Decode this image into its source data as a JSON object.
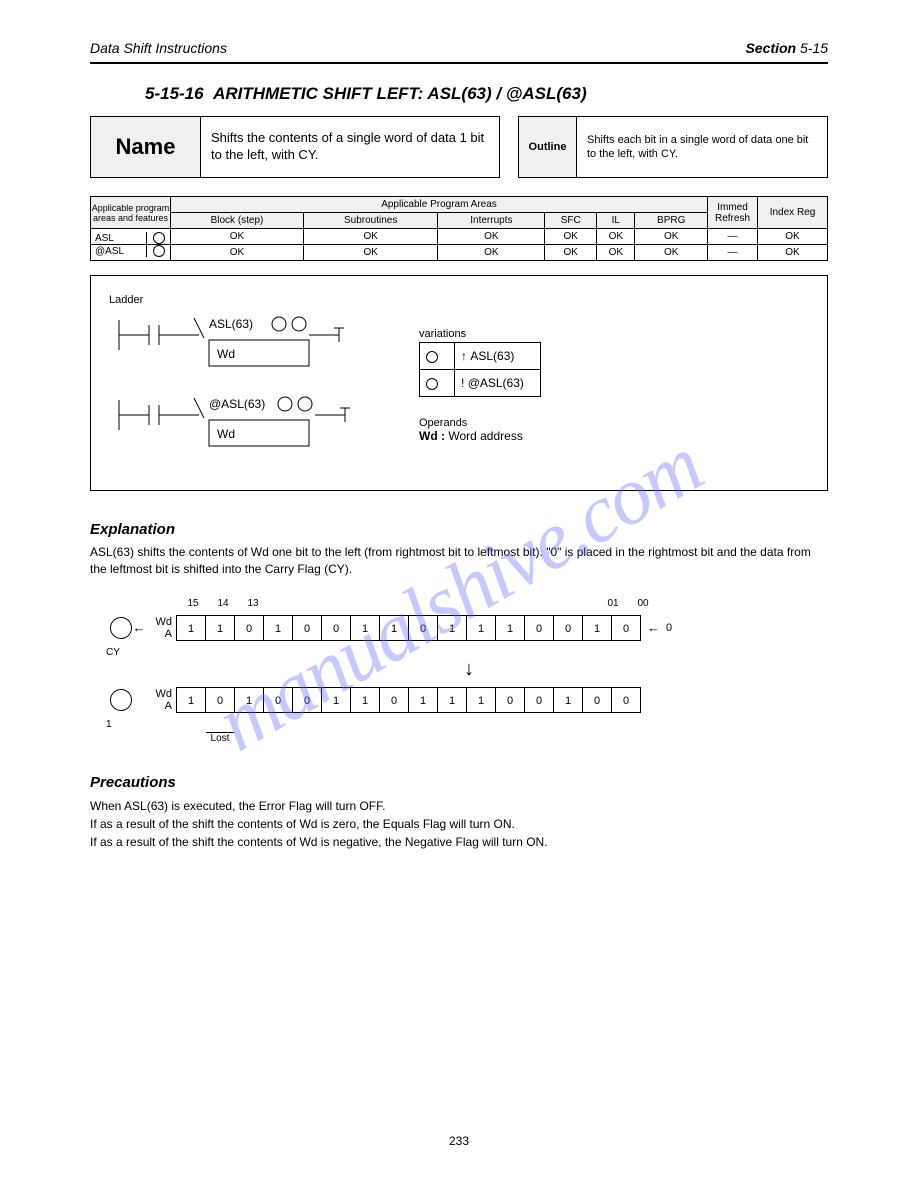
{
  "header": {
    "left": "Data Shift Instructions",
    "chapter": "Section",
    "sec": "5-15"
  },
  "section": {
    "number": "5-15-16",
    "title": "ARITHMETIC SHIFT LEFT: ASL(63) / @ASL(63)"
  },
  "name_box": {
    "label": "Name",
    "desc": "Shifts the contents of a single word of data 1 bit to the left, with CY."
  },
  "outline_box": {
    "label": "Outline",
    "desc": "Shifts each bit in a single word of data one bit to the left, with CY."
  },
  "applic": {
    "group": "Applicable program areas and features",
    "group1_header": "Applicable Program Areas",
    "cols": [
      "Block (step)",
      "Subroutines",
      "Interrupts",
      "SFC",
      "IL",
      "BPRG"
    ],
    "feat_cols": [
      "Immed Refresh",
      "Index Reg"
    ],
    "mnemonic1": "ASL",
    "mnemonic2": "@ASL",
    "fun": "63",
    "vals1": [
      "OK",
      "OK",
      "OK",
      "OK",
      "OK",
      "OK",
      "—",
      "OK"
    ],
    "vals2": [
      "OK",
      "OK",
      "OK",
      "OK",
      "OK",
      "OK",
      "—",
      "OK"
    ]
  },
  "ladder": {
    "top_label": "Ladder",
    "mnem1": "ASL(63)",
    "mnem2": "@ASL(63)",
    "wd": "Wd",
    "variations": {
      "rows": [
        [
          "↑",
          "ASL(63)"
        ],
        [
          "!",
          "@ASL(63)"
        ]
      ],
      "caption": "variations"
    },
    "oplabel": "Operands",
    "op_wd": "Wd :",
    "op_desc": "Word address"
  },
  "explanation": {
    "heading": "Explanation",
    "text1": "ASL(63) shifts the contents of Wd one bit to the left (from rightmost bit to leftmost bit). \"0\" is placed in the rightmost bit and the data from the leftmost bit is shifted into the Carry Flag (CY).",
    "bits_top": [
      "15",
      "14",
      "13",
      "",
      "",
      "",
      "",
      "",
      "",
      "",
      "",
      "",
      "",
      "",
      "01",
      "00"
    ],
    "values_a": [
      "1",
      "1",
      "0",
      "1",
      "0",
      "0",
      "1",
      "1",
      "0",
      "1",
      "1",
      "1",
      "0",
      "0",
      "1",
      "0"
    ],
    "label_a": "Wd    A",
    "cy_in": "0",
    "cy_label": "CY",
    "values_b": [
      "1",
      "0",
      "1",
      "0",
      "0",
      "1",
      "1",
      "0",
      "1",
      "1",
      "1",
      "0",
      "0",
      "1",
      "0",
      "0"
    ],
    "label_b": "Wd    A",
    "cy_out": "1",
    "lost": "Lost"
  },
  "precautions": {
    "heading": "Precautions",
    "text": "When ASL(63) is executed, the Error Flag will turn OFF.\nIf as a result of the shift the contents of Wd is zero, the Equals Flag will turn ON.\nIf as a result of the shift the contents of Wd is negative, the Negative Flag will turn ON."
  },
  "pagefoot": "233",
  "watermark": "manualshive.com"
}
